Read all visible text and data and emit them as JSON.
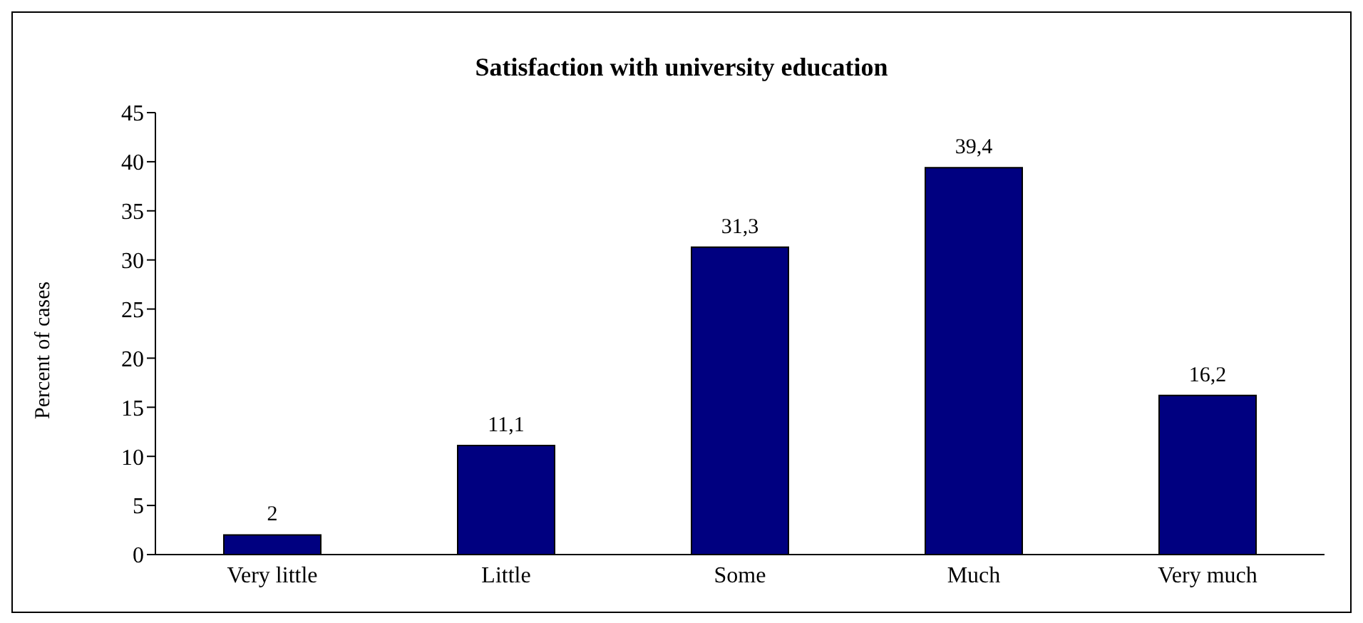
{
  "chart_data": {
    "type": "bar",
    "title": "Satisfaction with university education",
    "ylabel": "Percent of cases",
    "categories": [
      "Very little",
      "Little",
      "Some",
      "Much",
      "Very much"
    ],
    "values": [
      2,
      11.1,
      31.3,
      39.4,
      16.2
    ],
    "value_labels": [
      "2",
      "11,1",
      "31,3",
      "39,4",
      "16,2"
    ],
    "color": "#000080",
    "ylim": [
      0,
      45
    ],
    "yticks": [
      0,
      5,
      10,
      15,
      20,
      25,
      30,
      35,
      40,
      45
    ],
    "grid": false,
    "legend": false
  }
}
